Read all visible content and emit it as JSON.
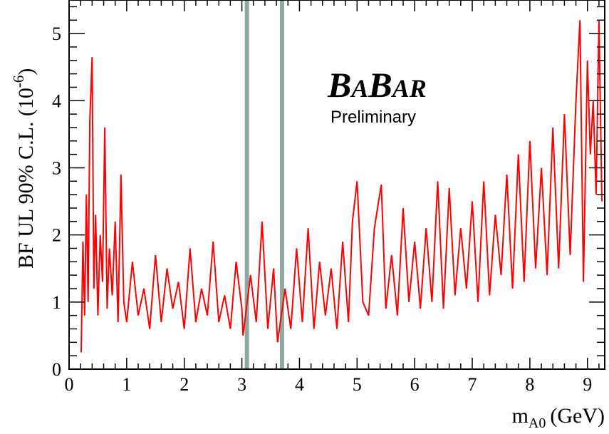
{
  "chart_data": {
    "type": "line",
    "xlabel_main": "m",
    "xlabel_sub": "A0",
    "xlabel_unit": "(GeV)",
    "ylabel": "BF UL   90% C.L. (10",
    "ylabel_exp": "-6",
    "ylabel_close": ")",
    "xlim": [
      0,
      9.3
    ],
    "ylim": [
      0,
      5.5
    ],
    "x_ticks": [
      "0",
      "1",
      "2",
      "3",
      "4",
      "5",
      "6",
      "7",
      "8",
      "9"
    ],
    "y_ticks": [
      "0",
      "1",
      "2",
      "3",
      "4",
      "5"
    ],
    "line_color": "#ff0000",
    "band_color": "#8fa9a2",
    "excluded_regions": [
      [
        3.05,
        3.12
      ],
      [
        3.66,
        3.72
      ]
    ],
    "annotation": {
      "logo": [
        "B",
        "A",
        "B",
        "AR"
      ],
      "subtitle": "Preliminary"
    },
    "series": [
      {
        "x": [
          0.21,
          0.24,
          0.27,
          0.3,
          0.33,
          0.36,
          0.4,
          0.43,
          0.46,
          0.5,
          0.54,
          0.58,
          0.62,
          0.66,
          0.7,
          0.75,
          0.8,
          0.85,
          0.9,
          0.95,
          1.0,
          1.1,
          1.2,
          1.3,
          1.4,
          1.5,
          1.6,
          1.7,
          1.8,
          1.9,
          2.0,
          2.1,
          2.2,
          2.3,
          2.4,
          2.5,
          2.6,
          2.7,
          2.8,
          2.9,
          3.0,
          3.02,
          3.15,
          3.25,
          3.35,
          3.45,
          3.55,
          3.62,
          3.75,
          3.85,
          3.95,
          4.05,
          4.15,
          4.25,
          4.35,
          4.45,
          4.55,
          4.65,
          4.75,
          4.85,
          4.92,
          5.0,
          5.1,
          5.2,
          5.3,
          5.42,
          5.5,
          5.6,
          5.7,
          5.8,
          5.9,
          6.0,
          6.1,
          6.2,
          6.3,
          6.4,
          6.5,
          6.6,
          6.7,
          6.8,
          6.9,
          7.0,
          7.1,
          7.2,
          7.3,
          7.4,
          7.5,
          7.6,
          7.7,
          7.8,
          7.9,
          8.0,
          8.1,
          8.2,
          8.3,
          8.4,
          8.5,
          8.6,
          8.7,
          8.8,
          8.87,
          8.93,
          9.0,
          9.05,
          9.1,
          9.15,
          9.2,
          9.25
        ],
        "y": [
          0.25,
          1.9,
          0.8,
          2.6,
          1.0,
          3.7,
          4.65,
          1.2,
          2.3,
          0.8,
          2.0,
          1.3,
          3.6,
          0.9,
          1.8,
          1.1,
          2.2,
          0.7,
          2.9,
          1.0,
          0.7,
          1.6,
          0.8,
          1.2,
          0.6,
          1.7,
          0.7,
          1.5,
          0.9,
          1.3,
          0.6,
          1.8,
          0.7,
          1.2,
          0.8,
          1.9,
          0.7,
          1.1,
          0.6,
          1.6,
          0.9,
          0.5,
          1.4,
          0.7,
          2.2,
          0.6,
          1.5,
          0.4,
          1.2,
          0.6,
          1.8,
          0.7,
          2.1,
          0.6,
          1.6,
          0.8,
          1.5,
          0.6,
          1.9,
          0.7,
          2.2,
          2.8,
          1.0,
          0.8,
          2.1,
          2.75,
          0.9,
          1.7,
          0.8,
          2.4,
          1.0,
          1.9,
          0.9,
          2.1,
          1.0,
          2.8,
          0.9,
          2.7,
          1.1,
          2.1,
          1.2,
          2.5,
          1.0,
          2.8,
          1.1,
          2.3,
          1.4,
          2.9,
          1.2,
          3.2,
          1.3,
          3.4,
          1.5,
          3.0,
          1.4,
          3.6,
          1.5,
          3.8,
          1.7,
          4.0,
          5.2,
          1.3,
          4.6,
          3.2,
          4.0,
          2.6,
          5.2,
          2.5
        ]
      }
    ]
  }
}
